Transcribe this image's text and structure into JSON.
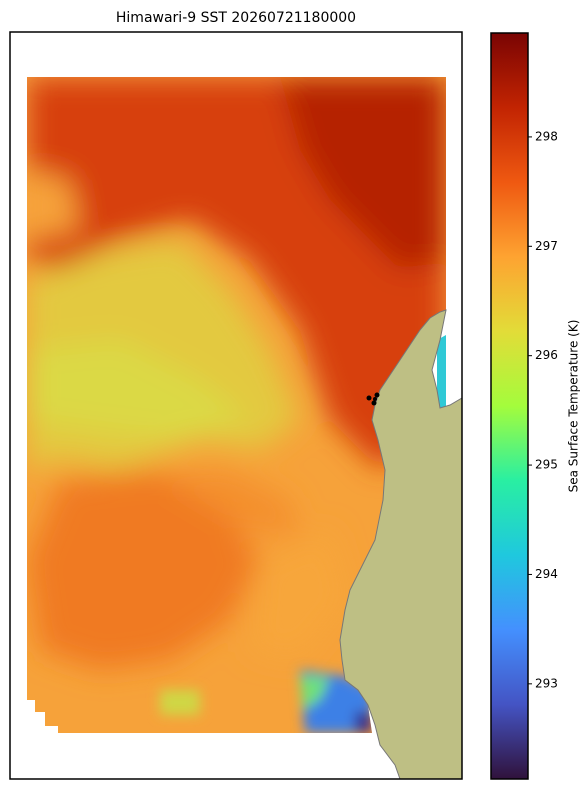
{
  "title": "Himawari-9 SST 20260721180000",
  "colorbar": {
    "label": "Sea Surface Temperature (K)",
    "lim": [
      292.13,
      298.95
    ],
    "ticks": [
      293,
      294,
      295,
      296,
      297,
      298
    ],
    "colormap": "turbo",
    "colors": [
      "#30123b",
      "#4454c4",
      "#4490fe",
      "#1fc8de",
      "#29efa2",
      "#a4fc3c",
      "#e2dc38",
      "#fea331",
      "#ef5911",
      "#c22402",
      "#7a0403"
    ]
  }
}
